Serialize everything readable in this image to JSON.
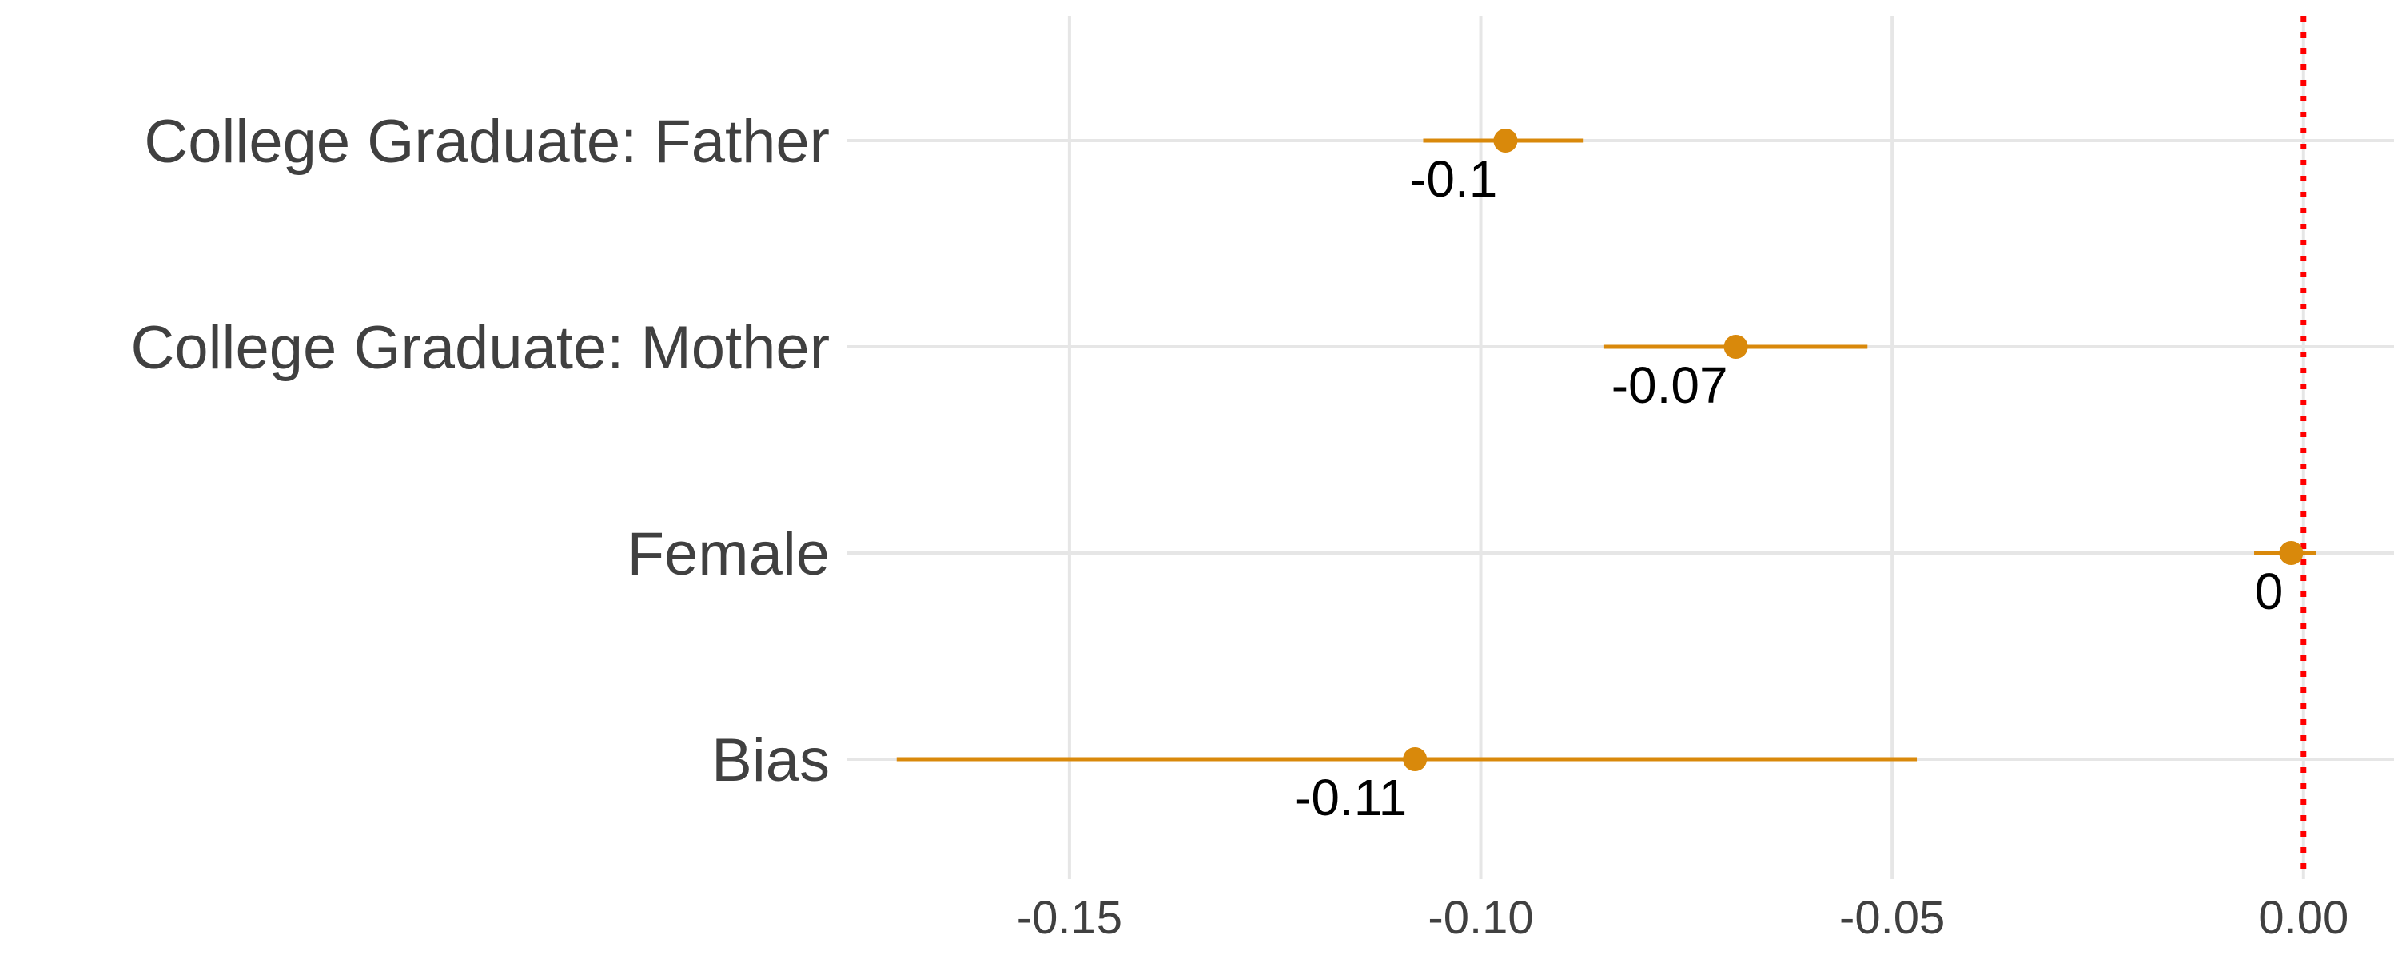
{
  "chart_data": {
    "type": "scatter",
    "subtype": "coefficient-plot",
    "categories": [
      "College Graduate: Father",
      "College Graduate: Mother",
      "Female",
      "Bias"
    ],
    "estimates": [
      -0.097,
      -0.069,
      -0.0015,
      -0.108
    ],
    "ci_low": [
      -0.107,
      -0.085,
      -0.006,
      -0.171
    ],
    "ci_high": [
      -0.0875,
      -0.053,
      0.0015,
      -0.047
    ],
    "data_labels": [
      "-0.1",
      "-0.07",
      "0",
      "-0.11"
    ],
    "xlim": [
      -0.177,
      0.011
    ],
    "x_ticks": [
      -0.15,
      -0.1,
      -0.05,
      0.0
    ],
    "x_tick_labels": [
      "-0.15",
      "-0.10",
      "-0.05",
      "0.00"
    ],
    "reference_line": {
      "x": 0,
      "style": "dotted",
      "color": "#ff0000"
    },
    "point_color": "#d9890b",
    "grid": true,
    "legend": "none",
    "title": "",
    "xlabel": "",
    "ylabel": ""
  }
}
